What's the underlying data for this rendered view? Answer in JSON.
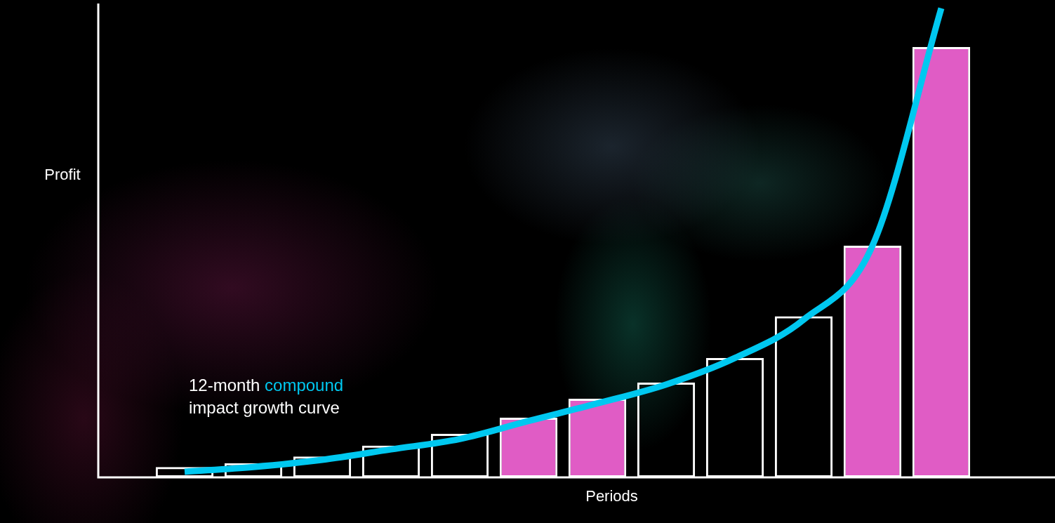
{
  "chart_data": {
    "type": "bar",
    "x_label": "Periods",
    "y_label": "Profit",
    "categories": [
      null,
      null,
      null,
      null,
      null,
      null,
      null,
      null,
      null,
      null,
      null,
      null
    ],
    "ylim": [
      0,
      100
    ],
    "yticks": [],
    "grid": false,
    "tick_labels": false,
    "series": [
      {
        "type": "bar",
        "colors": [
          "transparent",
          "transparent",
          "transparent",
          "transparent",
          "transparent",
          "#e05cc5",
          "#e05cc5",
          "transparent",
          "transparent",
          "transparent",
          "#e05cc5",
          "#e05cc5"
        ],
        "values": [
          2.2,
          3,
          4.4,
          6.7,
          9.2,
          12.6,
          16.6,
          20,
          25.2,
          34,
          48.9,
          90.8
        ]
      },
      {
        "type": "line",
        "color": "#00c8f0",
        "line_style": "solid",
        "marker": "none",
        "values": [
          1.2,
          2.2,
          3.7,
          5.9,
          8.1,
          11.9,
          15.6,
          19.6,
          25.2,
          33.3,
          48.9,
          99
        ]
      }
    ],
    "annotation": {
      "lines": [
        "12-month compound",
        "impact growth curve"
      ],
      "highlight": "compound",
      "color": "#00c8f0"
    }
  }
}
